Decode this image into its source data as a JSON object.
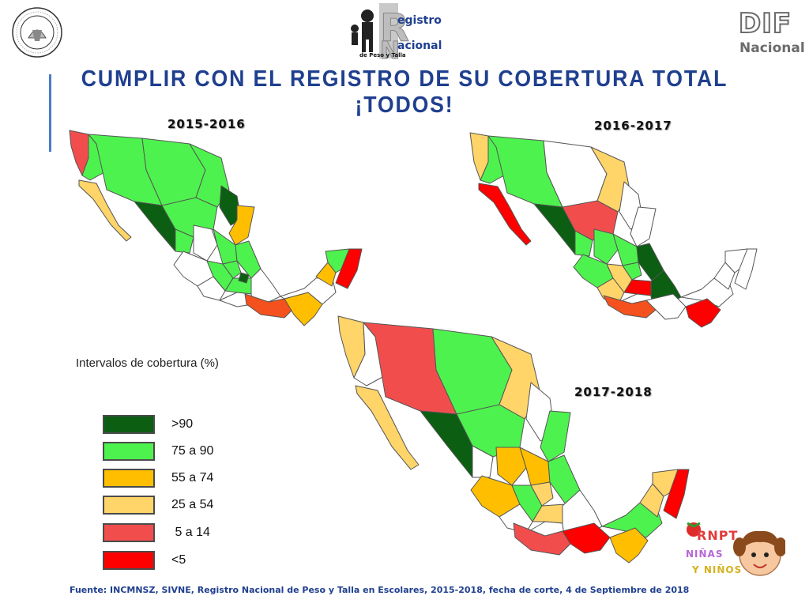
{
  "header": {
    "title": "CUMPLIR CON EL REGISTRO DE SU COBERTURA TOTAL ¡TODOS!"
  },
  "logos": {
    "registro_line1": "egistro",
    "registro_line2": "acional",
    "registro_sub": "de Peso y Talla",
    "dif_big": "DIF",
    "dif_small": "Nacional",
    "rnpt_line1": "RNPT",
    "rnpt_line2": "NIÑAS",
    "rnpt_line3": "Y NIÑOS"
  },
  "maps": [
    {
      "period": "2015-2016"
    },
    {
      "period": "2016-2017"
    },
    {
      "period": "2017-2018"
    }
  ],
  "legend": {
    "title": "Intervalos de cobertura (%)",
    "items": [
      {
        "label": ">90",
        "color": "#0b5e12"
      },
      {
        "label": "75 a 90",
        "color": "#4ef24e"
      },
      {
        "label": "55 a 74",
        "color": "#ffbf00"
      },
      {
        "label": "25 a 54",
        "color": "#ffd469"
      },
      {
        "label": " 5 a 14",
        "color": "#f24d4d"
      },
      {
        "label": "<5",
        "color": "#ff0000"
      }
    ]
  },
  "colors": {
    "none": "#ffffff",
    "border": "#555555"
  },
  "source": "Fuente: INCMNSZ, SIVNE, Registro Nacional de Peso y Talla en Escolares, 2015-2018, fecha de corte, 4 de Septiembre de 2018"
}
